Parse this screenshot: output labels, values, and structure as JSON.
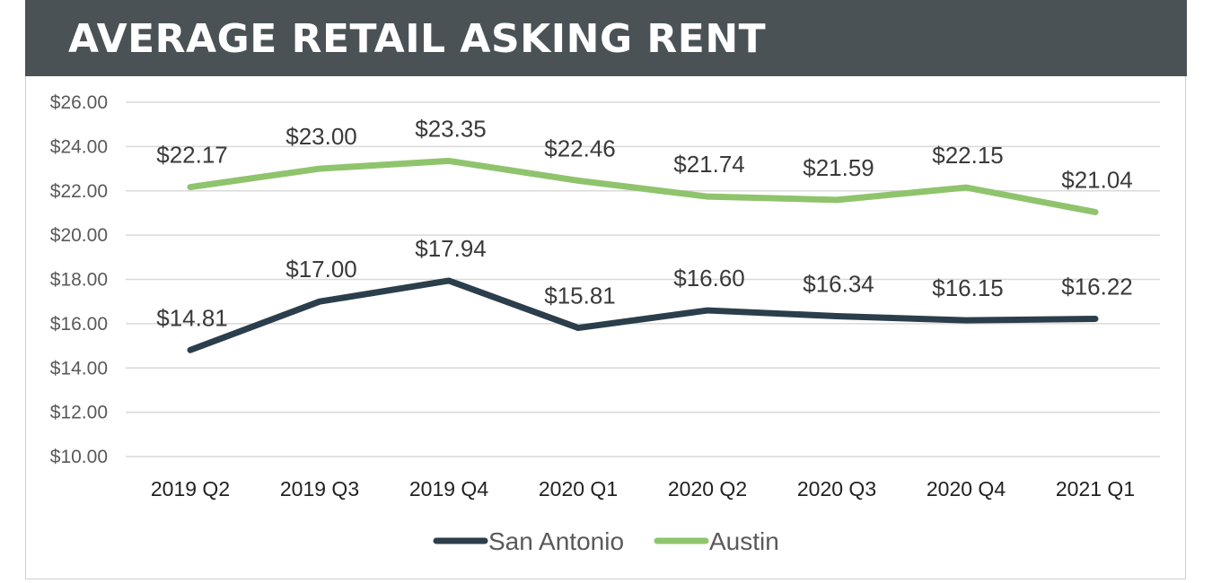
{
  "header": {
    "title": "AVERAGE RETAIL ASKING RENT"
  },
  "chart_data": {
    "type": "line",
    "title": "AVERAGE RETAIL ASKING RENT",
    "categories": [
      "2019 Q2",
      "2019 Q3",
      "2019 Q4",
      "2020 Q1",
      "2020 Q2",
      "2020 Q3",
      "2020 Q4",
      "2021 Q1"
    ],
    "yticks": [
      "$26.00",
      "$24.00",
      "$22.00",
      "$20.00",
      "$18.00",
      "$16.00",
      "$14.00",
      "$12.00",
      "$10.00"
    ],
    "ylim": [
      10,
      26
    ],
    "grid": true,
    "legend": "bottom",
    "series": [
      {
        "name": "San Antonio",
        "color": "#2b3e4c",
        "values": [
          14.81,
          17.0,
          17.94,
          15.81,
          16.6,
          16.34,
          16.15,
          16.22
        ],
        "labels": [
          "$14.81",
          "$17.00",
          "$17.94",
          "$15.81",
          "$16.60",
          "$16.34",
          "$16.15",
          "$16.22"
        ]
      },
      {
        "name": "Austin",
        "color": "#8fc46d",
        "values": [
          22.17,
          23.0,
          23.35,
          22.46,
          21.74,
          21.59,
          22.15,
          21.04
        ],
        "labels": [
          "$22.17",
          "$23.00",
          "$23.35",
          "$22.46",
          "$21.74",
          "$21.59",
          "$22.15",
          "$21.04"
        ]
      }
    ]
  }
}
